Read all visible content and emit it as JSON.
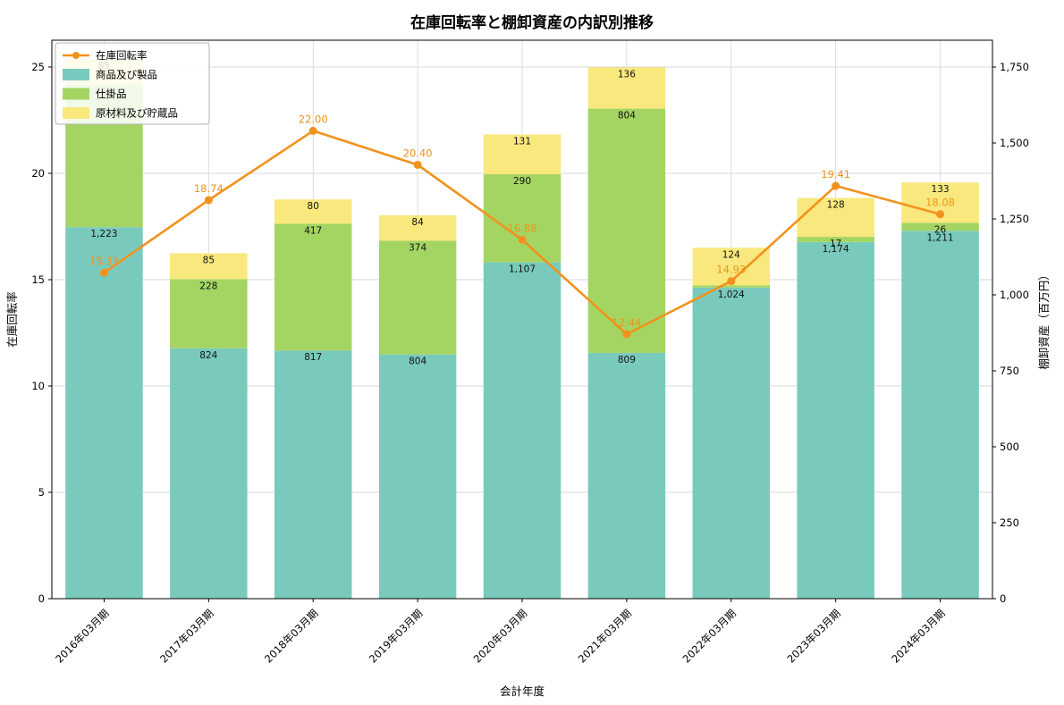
{
  "chart_data": {
    "type": "combo-stacked-bar-line",
    "title": "在庫回転率と棚卸資産の内訳別推移",
    "xlabel": "会計年度",
    "ylabel_left": "在庫回転率",
    "ylabel_right": "棚卸資産（百万円）",
    "categories": [
      "2016年03月期",
      "2017年03月期",
      "2018年03月期",
      "2019年03月期",
      "2020年03月期",
      "2021年03月期",
      "2022年03月期",
      "2023年03月期",
      "2024年03月期"
    ],
    "bar_series": [
      {
        "name": "商品及び製品",
        "color": "#79cabc",
        "values": [
          1223,
          824,
          817,
          804,
          1107,
          809,
          1024,
          1174,
          1211
        ]
      },
      {
        "name": "仕掛品",
        "color": "#a4d563",
        "values": [
          468,
          228,
          417,
          374,
          290,
          804,
          7,
          17,
          26
        ]
      },
      {
        "name": "原材料及び貯蔵品",
        "color": "#f9e87d",
        "values": [
          85,
          85,
          80,
          84,
          131,
          136,
          124,
          128,
          133
        ]
      }
    ],
    "line_series": {
      "name": "在庫回転率",
      "color": "#f2921d",
      "values": [
        15.33,
        18.74,
        22.0,
        20.4,
        16.88,
        12.44,
        14.93,
        19.41,
        18.08
      ]
    },
    "left_axis": {
      "min": 0,
      "max": 25,
      "ticks": [
        0,
        5,
        10,
        15,
        20,
        25
      ]
    },
    "right_axis": {
      "min": 0,
      "max": 1750,
      "ticks": [
        0,
        250,
        500,
        750,
        1000,
        1250,
        1500,
        1750
      ]
    },
    "grid": true,
    "legend_position": "top-left"
  }
}
